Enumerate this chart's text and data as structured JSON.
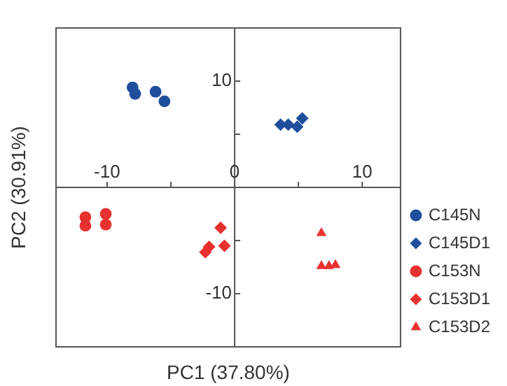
{
  "chart_data": {
    "type": "scatter",
    "xlabel": "PC1 (37.80%)",
    "ylabel": "PC2 (30.91%)",
    "xlim": [
      -14,
      13
    ],
    "ylim": [
      -15,
      15
    ],
    "xticks": [
      -10,
      {
        "value": -5,
        "label": null
      },
      0,
      {
        "value": 5,
        "label": null
      },
      10
    ],
    "yticks": [
      -10,
      {
        "value": -5,
        "label": null
      },
      {
        "value": 5,
        "label": null
      },
      10
    ],
    "grid": false,
    "legend": "bottom right",
    "series": [
      {
        "name": "C145N",
        "color": "#1f4e9c",
        "marker": "circle",
        "x": [
          -8.0,
          -7.8,
          -6.2,
          -5.5
        ],
        "values": [
          9.4,
          8.8,
          9.0,
          8.1
        ]
      },
      {
        "name": "C145D1",
        "color": "#1f4e9c",
        "marker": "diamond",
        "x": [
          3.6,
          4.2,
          4.9,
          5.3
        ],
        "values": [
          5.9,
          5.9,
          5.7,
          6.5
        ]
      },
      {
        "name": "C153N",
        "color": "#e8312f",
        "marker": "circle",
        "x": [
          -11.7,
          -11.7,
          -10.1,
          -10.1
        ],
        "values": [
          -2.8,
          -3.6,
          -2.5,
          -3.5
        ]
      },
      {
        "name": "C153D1",
        "color": "#e8312f",
        "marker": "diamond",
        "x": [
          -1.1,
          -0.8,
          -2.0,
          -2.3
        ],
        "values": [
          -3.8,
          -5.5,
          -5.6,
          -6.1
        ]
      },
      {
        "name": "C153D2",
        "color": "#e8312f",
        "marker": "triangle",
        "x": [
          6.8,
          6.8,
          7.4,
          7.9
        ],
        "values": [
          -4.3,
          -7.4,
          -7.4,
          -7.3
        ]
      }
    ]
  }
}
